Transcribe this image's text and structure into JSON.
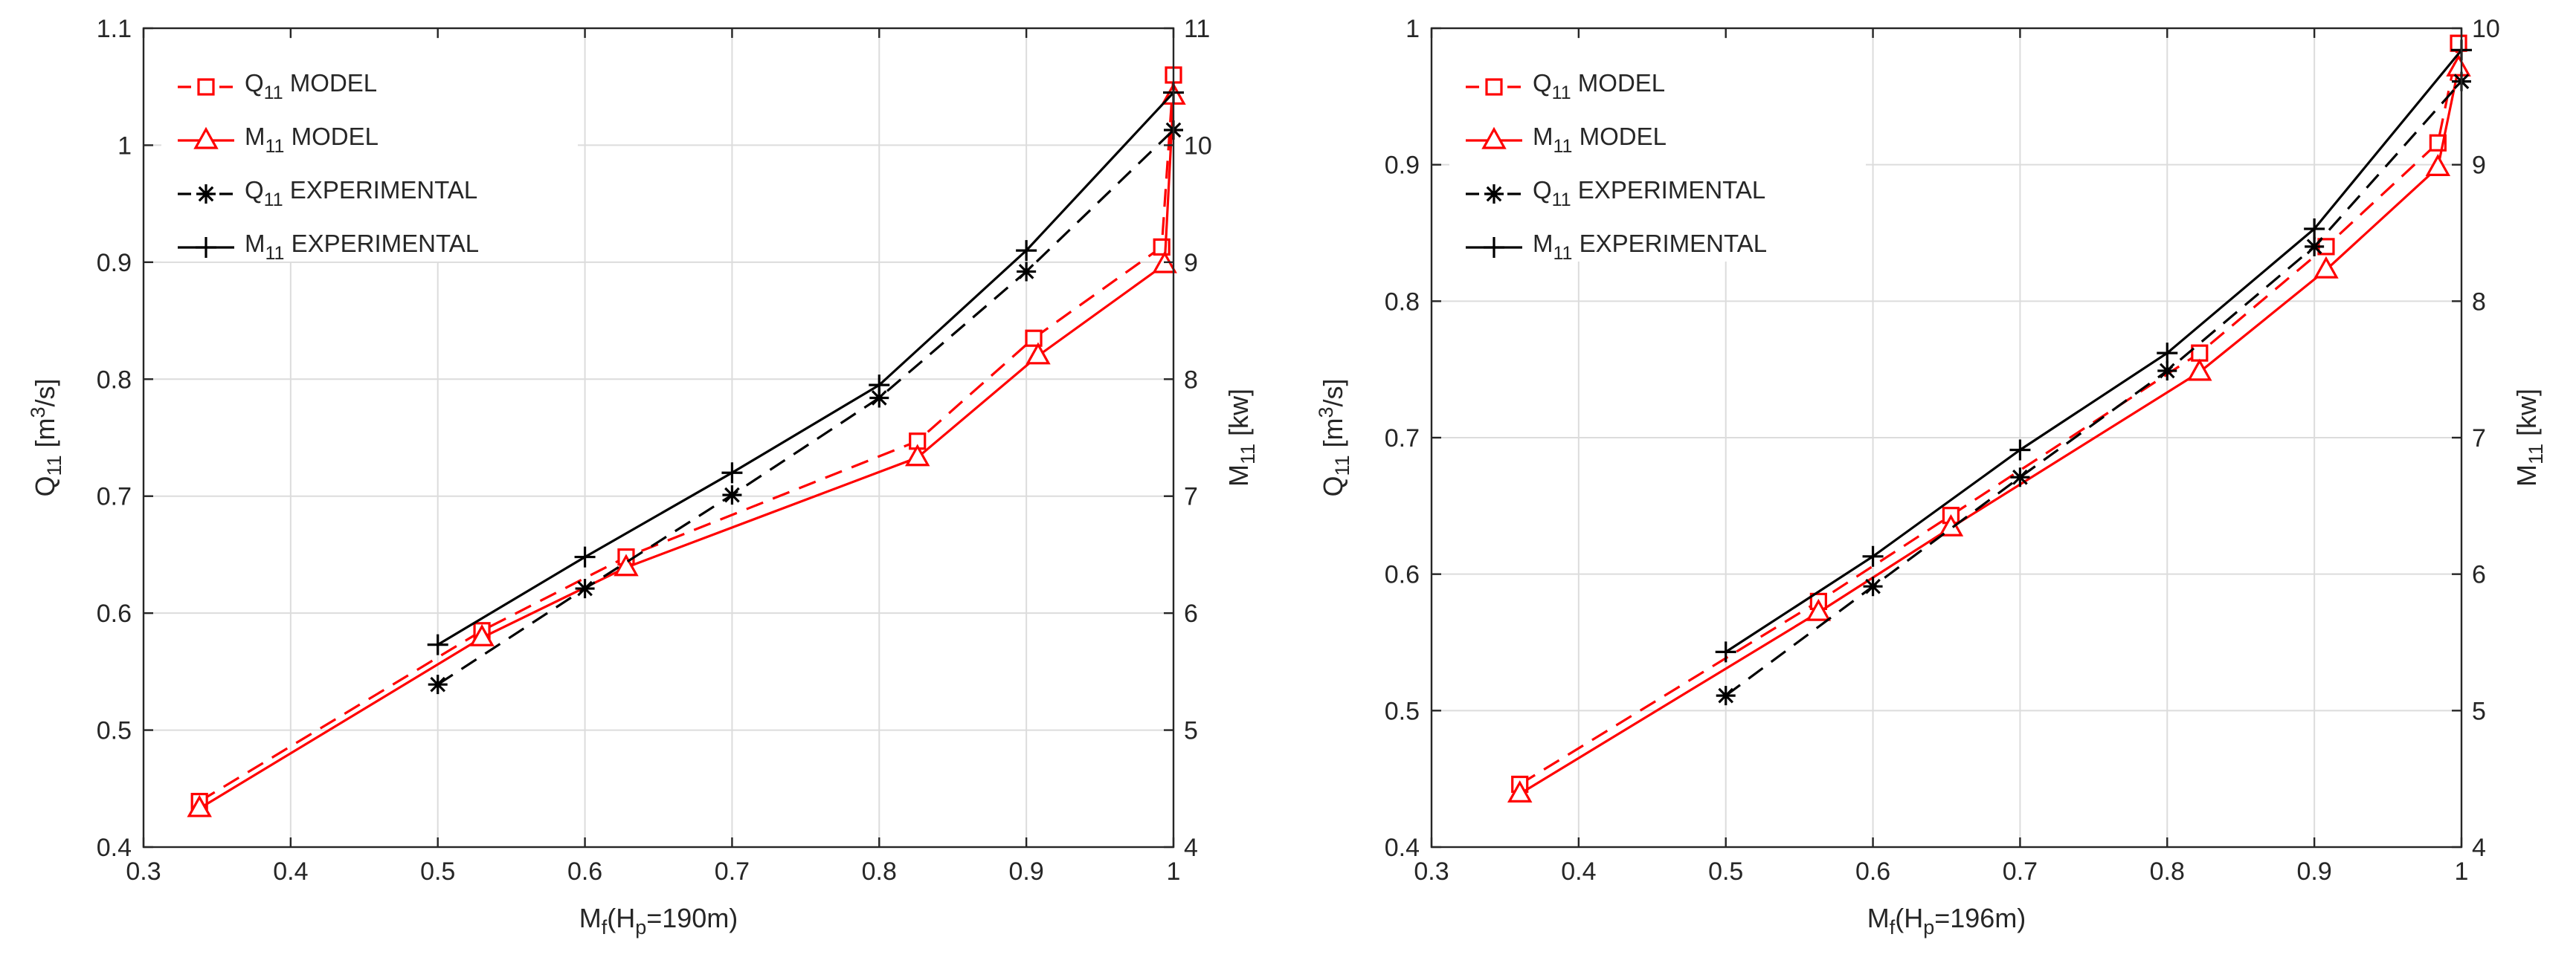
{
  "chart_data": [
    {
      "type": "line",
      "xlabel": {
        "main": "M",
        "sub": "f",
        "rest1": "(H",
        "sub2": "p",
        "rest2": "=190m)"
      },
      "ylabel_left": {
        "main": "Q",
        "sub": "11",
        "rest": " [m",
        "sup": "3",
        "rest2": "/s]"
      },
      "ylabel_right": {
        "main": "M",
        "sub": "11",
        "rest": " [kw]"
      },
      "xlim": [
        0.3,
        1.0
      ],
      "ylim_left": [
        0.4,
        1.1
      ],
      "ylim_right": [
        4,
        11
      ],
      "xticks": [
        0.3,
        0.4,
        0.5,
        0.6,
        0.7,
        0.8,
        0.9,
        1
      ],
      "yticks_left": [
        0.4,
        0.5,
        0.6,
        0.7,
        0.8,
        0.9,
        1,
        1.1
      ],
      "yticks_right": [
        4,
        5,
        6,
        7,
        8,
        9,
        10,
        11
      ],
      "xtick_labels": [
        "0.3",
        "0.4",
        "0.5",
        "0.6",
        "0.7",
        "0.8",
        "0.9",
        "1"
      ],
      "ytick_labels_left": [
        "0.4",
        "0.5",
        "0.6",
        "0.7",
        "0.8",
        "0.9",
        "1",
        "1.1"
      ],
      "ytick_labels_right": [
        "4",
        "5",
        "6",
        "7",
        "8",
        "9",
        "10",
        "11"
      ],
      "grid": true,
      "legend_position": "top-left",
      "series": [
        {
          "name": "Q11 MODEL",
          "label_main": "Q",
          "label_sub": "11",
          "label_rest": " MODEL",
          "axis": "left",
          "color": "#ff0000",
          "dash": "dashed",
          "marker": "square",
          "x": [
            0.338,
            0.53,
            0.628,
            0.826,
            0.905,
            0.992,
            1.0
          ],
          "y": [
            0.439,
            0.585,
            0.648,
            0.747,
            0.835,
            0.913,
            1.06
          ]
        },
        {
          "name": "M11 MODEL",
          "label_main": "M",
          "label_sub": "11",
          "label_rest": " MODEL",
          "axis": "right",
          "color": "#ff0000",
          "dash": "solid",
          "marker": "triangle",
          "x": [
            0.338,
            0.53,
            0.628,
            0.826,
            0.908,
            0.994,
            1.0
          ],
          "y": [
            4.33,
            5.79,
            6.39,
            7.33,
            8.2,
            8.98,
            10.42
          ]
        },
        {
          "name": "Q11 EXPERIMENTAL",
          "label_main": "Q",
          "label_sub": "11",
          "label_rest": " EXPERIMENTAL",
          "axis": "left",
          "color": "#000000",
          "dash": "dashed",
          "marker": "asterisk",
          "x": [
            0.5,
            0.6,
            0.7,
            0.8,
            0.9,
            1.0
          ],
          "y": [
            0.539,
            0.621,
            0.701,
            0.784,
            0.892,
            1.013
          ]
        },
        {
          "name": "M11 EXPERIMENTAL",
          "label_main": "M",
          "label_sub": "11",
          "label_rest": " EXPERIMENTAL",
          "axis": "right",
          "color": "#000000",
          "dash": "solid",
          "marker": "plus",
          "x": [
            0.5,
            0.6,
            0.7,
            0.8,
            0.9,
            1.0
          ],
          "y": [
            5.73,
            6.48,
            7.2,
            7.95,
            9.1,
            10.45
          ]
        }
      ]
    },
    {
      "type": "line",
      "xlabel": {
        "main": "M",
        "sub": "f",
        "rest1": "(H",
        "sub2": "p",
        "rest2": "=196m)"
      },
      "ylabel_left": {
        "main": "Q",
        "sub": "11",
        "rest": " [m",
        "sup": "3",
        "rest2": "/s]"
      },
      "ylabel_right": {
        "main": "M",
        "sub": "11",
        "rest": " [kw]"
      },
      "xlim": [
        0.3,
        1.0
      ],
      "ylim_left": [
        0.4,
        1.0
      ],
      "ylim_right": [
        4,
        10
      ],
      "xticks": [
        0.3,
        0.4,
        0.5,
        0.6,
        0.7,
        0.8,
        0.9,
        1
      ],
      "yticks_left": [
        0.4,
        0.5,
        0.6,
        0.7,
        0.8,
        0.9,
        1
      ],
      "yticks_right": [
        4,
        5,
        6,
        7,
        8,
        9,
        10
      ],
      "xtick_labels": [
        "0.3",
        "0.4",
        "0.5",
        "0.6",
        "0.7",
        "0.8",
        "0.9",
        "1"
      ],
      "ytick_labels_left": [
        "0.4",
        "0.5",
        "0.6",
        "0.7",
        "0.8",
        "0.9",
        "1"
      ],
      "ytick_labels_right": [
        "4",
        "5",
        "6",
        "7",
        "8",
        "9",
        "10"
      ],
      "grid": true,
      "legend_position": "top-left",
      "series": [
        {
          "name": "Q11 MODEL",
          "label_main": "Q",
          "label_sub": "11",
          "label_rest": " MODEL",
          "axis": "left",
          "color": "#ff0000",
          "dash": "dashed",
          "marker": "square",
          "x": [
            0.36,
            0.563,
            0.653,
            0.822,
            0.908,
            0.984,
            0.998
          ],
          "y": [
            0.446,
            0.58,
            0.643,
            0.762,
            0.84,
            0.916,
            0.989
          ]
        },
        {
          "name": "M11 MODEL",
          "label_main": "M",
          "label_sub": "11",
          "label_rest": " MODEL",
          "axis": "right",
          "color": "#ff0000",
          "dash": "solid",
          "marker": "triangle",
          "x": [
            0.36,
            0.563,
            0.653,
            0.822,
            0.908,
            0.984,
            0.998
          ],
          "y": [
            4.39,
            5.72,
            6.34,
            7.48,
            8.23,
            8.98,
            9.71
          ]
        },
        {
          "name": "Q11 EXPERIMENTAL",
          "label_main": "Q",
          "label_sub": "11",
          "label_rest": " EXPERIMENTAL",
          "axis": "left",
          "color": "#000000",
          "dash": "dashed",
          "marker": "asterisk",
          "x": [
            0.5,
            0.6,
            0.7,
            0.8,
            0.9,
            1.0
          ],
          "y": [
            0.511,
            0.591,
            0.671,
            0.749,
            0.84,
            0.961
          ]
        },
        {
          "name": "M11 EXPERIMENTAL",
          "label_main": "M",
          "label_sub": "11",
          "label_rest": " EXPERIMENTAL",
          "axis": "right",
          "color": "#000000",
          "dash": "solid",
          "marker": "plus",
          "x": [
            0.5,
            0.6,
            0.7,
            0.8,
            0.9,
            1.0
          ],
          "y": [
            5.43,
            6.13,
            6.91,
            7.62,
            8.53,
            9.84
          ]
        }
      ]
    }
  ]
}
